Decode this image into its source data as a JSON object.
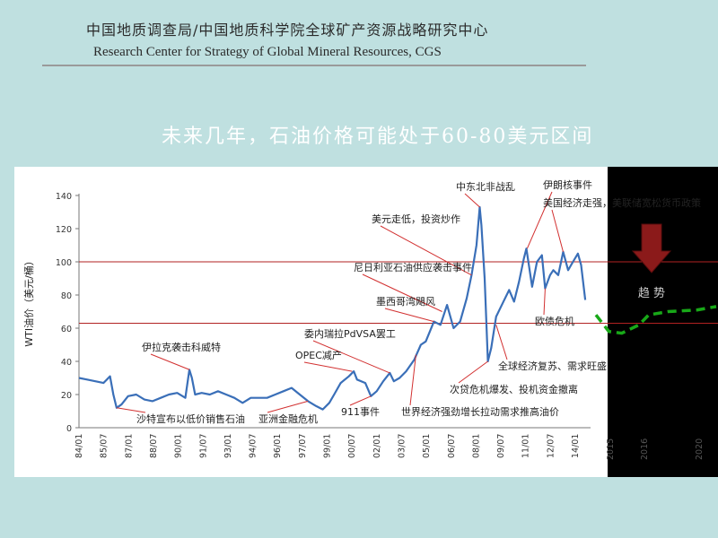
{
  "header": {
    "org_cn": "中国地质调查局/中国地质科学院全球矿产资源战略研究中心",
    "org_en": "Research Center for Strategy of Global Mineral Resources, CGS"
  },
  "slide_title": "未来几年，石油价格可能处于60-80美元区间",
  "colors": {
    "background": "#bfe0e0",
    "series": "#3a6fb8",
    "refline": "#b22222",
    "forecast": "#18a818",
    "arrow": "#8b1a1a"
  },
  "chart_data": {
    "type": "line",
    "ylabel": "WTI油价（美元/桶）",
    "ylim": [
      0,
      140
    ],
    "yticks": [
      0,
      20,
      40,
      60,
      80,
      100,
      120,
      140
    ],
    "xlabels": [
      "84/01",
      "85/07",
      "87/01",
      "88/07",
      "90/01",
      "91/07",
      "93/01",
      "94/07",
      "96/01",
      "97/07",
      "99/01",
      "00/07",
      "02/01",
      "03/07",
      "05/01",
      "06/07",
      "08/01",
      "09/07",
      "11/01",
      "12/07",
      "14/01"
    ],
    "forecast_xlabels": [
      "2015",
      "2016",
      "2020"
    ],
    "reference_lines": [
      100,
      63
    ],
    "series": [
      {
        "values": [
          [
            1984.0,
            30
          ],
          [
            1984.5,
            29
          ],
          [
            1985.0,
            28
          ],
          [
            1985.5,
            27
          ],
          [
            1985.9,
            31
          ],
          [
            1986.1,
            20
          ],
          [
            1986.3,
            12
          ],
          [
            1986.6,
            14
          ],
          [
            1987.0,
            19
          ],
          [
            1987.5,
            20
          ],
          [
            1988.0,
            17
          ],
          [
            1988.5,
            16
          ],
          [
            1989.0,
            18
          ],
          [
            1989.5,
            20
          ],
          [
            1990.0,
            21
          ],
          [
            1990.5,
            18
          ],
          [
            1990.75,
            35
          ],
          [
            1990.9,
            30
          ],
          [
            1991.1,
            20
          ],
          [
            1991.5,
            21
          ],
          [
            1992.0,
            20
          ],
          [
            1992.5,
            22
          ],
          [
            1993.0,
            20
          ],
          [
            1993.5,
            18
          ],
          [
            1994.0,
            15
          ],
          [
            1994.5,
            18
          ],
          [
            1995.0,
            18
          ],
          [
            1995.5,
            18
          ],
          [
            1996.0,
            20
          ],
          [
            1996.5,
            22
          ],
          [
            1997.0,
            24
          ],
          [
            1997.5,
            20
          ],
          [
            1998.0,
            16
          ],
          [
            1998.5,
            13
          ],
          [
            1998.9,
            11
          ],
          [
            1999.3,
            15
          ],
          [
            1999.6,
            20
          ],
          [
            2000.0,
            27
          ],
          [
            2000.5,
            31
          ],
          [
            2000.8,
            34
          ],
          [
            2001.0,
            29
          ],
          [
            2001.5,
            27
          ],
          [
            2001.85,
            19
          ],
          [
            2002.2,
            22
          ],
          [
            2002.6,
            28
          ],
          [
            2003.0,
            33
          ],
          [
            2003.25,
            28
          ],
          [
            2003.6,
            30
          ],
          [
            2004.0,
            34
          ],
          [
            2004.5,
            41
          ],
          [
            2004.9,
            50
          ],
          [
            2005.2,
            52
          ],
          [
            2005.7,
            64
          ],
          [
            2006.1,
            62
          ],
          [
            2006.5,
            74
          ],
          [
            2006.9,
            60
          ],
          [
            2007.3,
            64
          ],
          [
            2007.7,
            78
          ],
          [
            2008.0,
            92
          ],
          [
            2008.3,
            110
          ],
          [
            2008.5,
            133
          ],
          [
            2008.6,
            122
          ],
          [
            2008.8,
            90
          ],
          [
            2009.0,
            40
          ],
          [
            2009.2,
            48
          ],
          [
            2009.5,
            67
          ],
          [
            2009.9,
            75
          ],
          [
            2010.3,
            83
          ],
          [
            2010.6,
            76
          ],
          [
            2010.9,
            88
          ],
          [
            2011.2,
            102
          ],
          [
            2011.35,
            108
          ],
          [
            2011.7,
            85
          ],
          [
            2012.0,
            100
          ],
          [
            2012.3,
            104
          ],
          [
            2012.5,
            84
          ],
          [
            2012.8,
            92
          ],
          [
            2013.0,
            95
          ],
          [
            2013.3,
            92
          ],
          [
            2013.6,
            106
          ],
          [
            2013.9,
            95
          ],
          [
            2014.2,
            100
          ],
          [
            2014.5,
            105
          ],
          [
            2014.7,
            98
          ],
          [
            2014.95,
            77
          ]
        ]
      },
      {
        "name": "forecast",
        "values": [
          [
            2015.0,
            68
          ],
          [
            2015.3,
            58
          ],
          [
            2015.6,
            57
          ],
          [
            2016.0,
            62
          ],
          [
            2016.5,
            68
          ],
          [
            2017.5,
            70
          ],
          [
            2019.0,
            71
          ],
          [
            2020.0,
            73
          ]
        ]
      }
    ],
    "annotations": [
      "中东北非战乱",
      "伊朗核事件",
      "美元走低，投资炒作",
      "美国经济走强，美联储宽松货币政策",
      "尼日利亚石油供应袭击事件",
      "墨西哥湾飓风",
      "委内瑞拉PdVSA罢工",
      "OPEC减产",
      "伊拉克袭击科威特",
      "沙特宣布以低价销售石油",
      "亚洲金融危机",
      "911事件",
      "世界经济强劲增长拉动需求推高油价",
      "次贷危机爆发、投机资金撤离",
      "全球经济复苏、需求旺盛",
      "欧债危机"
    ],
    "trend_label": "趋 势"
  }
}
